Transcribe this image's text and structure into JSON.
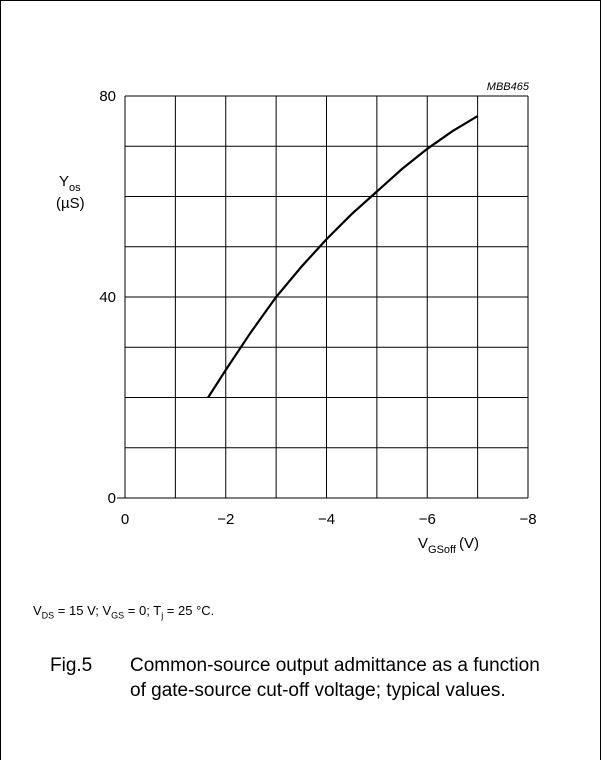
{
  "chart_data": {
    "type": "line",
    "code": "MBB465",
    "ylabel_main": "Y",
    "ylabel_sub": "os",
    "ylabel_unit": "(µS)",
    "xlabel_main": "V",
    "xlabel_sub": "GSoff",
    "xlabel_unit": "(V)",
    "xlim": [
      0,
      -8
    ],
    "ylim": [
      0,
      80
    ],
    "x_ticks": [
      "0",
      "−2",
      "−4",
      "−6",
      "−8"
    ],
    "y_ticks": [
      "0",
      "40",
      "80"
    ],
    "grid": true,
    "series": [
      {
        "x": [
          -1.65,
          -2.0,
          -2.5,
          -3.0,
          -3.5,
          -4.0,
          -4.5,
          -5.0,
          -5.5,
          -6.0,
          -6.5,
          -7.0
        ],
        "values": [
          20,
          25.5,
          33,
          40,
          46,
          51.5,
          56.5,
          61,
          65.5,
          69.5,
          73,
          76
        ]
      }
    ]
  },
  "conditions": {
    "vds_sym": "V",
    "vds_sub": "DS",
    "vds_val": " = 15 V; ",
    "vgs_sym": "V",
    "vgs_sub": "GS",
    "vgs_val": " = 0; ",
    "tj_sym": "T",
    "tj_sub": "j",
    "tj_val": " = 25 °C."
  },
  "caption": {
    "number": "Fig.5",
    "text": "Common-source output admittance as a function of gate-source cut-off voltage; typical values."
  }
}
